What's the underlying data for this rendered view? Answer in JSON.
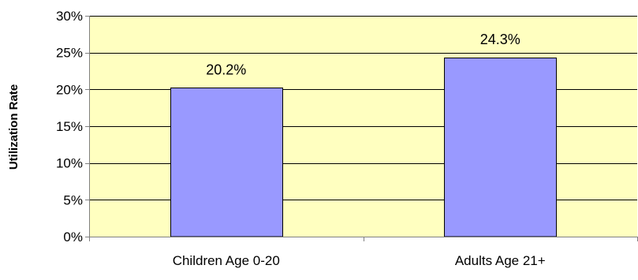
{
  "chart_data": {
    "type": "bar",
    "categories": [
      "Children Age 0-20",
      "Adults Age 21+"
    ],
    "values": [
      20.2,
      24.3
    ],
    "data_labels": [
      "20.2%",
      "24.3%"
    ],
    "title": "",
    "xlabel": "",
    "ylabel": "Utilization Rate",
    "ylim": [
      0,
      30
    ],
    "yticks": [
      0,
      5,
      10,
      15,
      20,
      25,
      30
    ],
    "ytick_labels": [
      "0%",
      "5%",
      "10%",
      "15%",
      "20%",
      "25%",
      "30%"
    ],
    "grid": true,
    "legend": "none",
    "colors": {
      "plot_background": "#FFFFC0",
      "bar_fill": "#9999FF",
      "bar_stroke": "#000000",
      "gridline": "#000000",
      "axis": "#808080",
      "text": "#000000"
    }
  }
}
